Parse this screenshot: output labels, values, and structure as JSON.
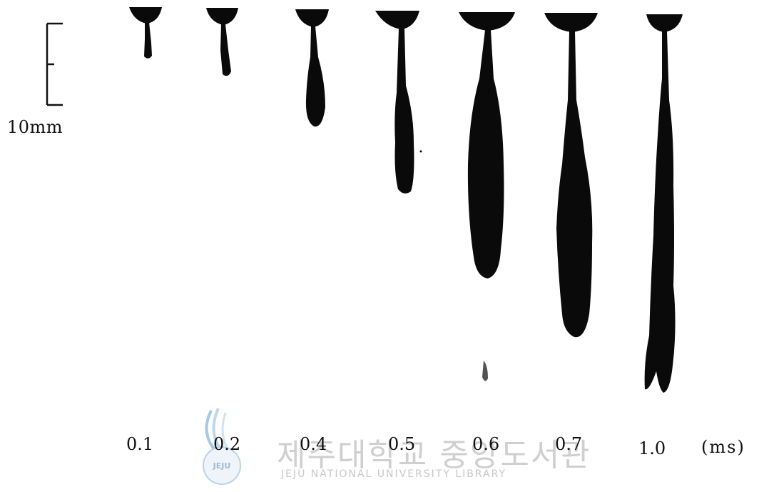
{
  "figure": {
    "scale_label": "10mm",
    "time_labels": [
      "0.1",
      "0.2",
      "0.4",
      "0.5",
      "0.6",
      "0.7",
      "1.0"
    ],
    "unit_label": "(ms)"
  },
  "watermark": {
    "text_korean": "제주대학교 중앙도서관",
    "text_english": "JEJU NATIONAL UNIVERSITY LIBRARY",
    "seal_text": "JEJU",
    "seal_color": "#8fb6d8"
  },
  "colors": {
    "spray": "#0a0a0a",
    "background": "#ffffff",
    "watermark": "#cfcfcf"
  }
}
